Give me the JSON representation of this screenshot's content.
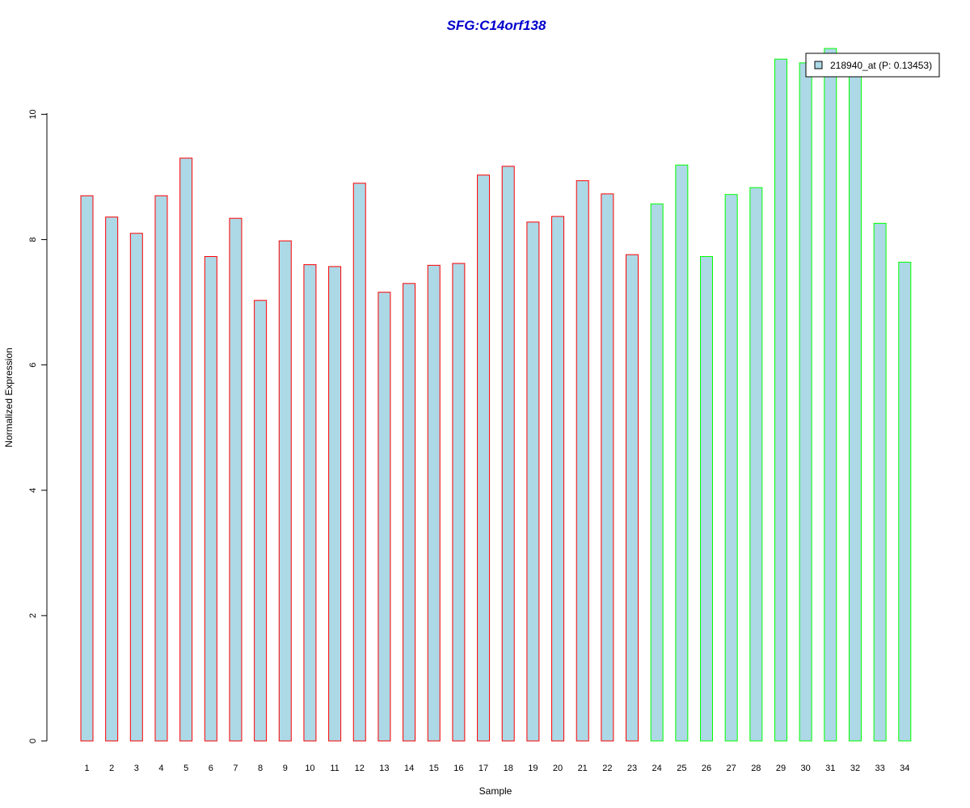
{
  "chart_data": {
    "type": "bar",
    "title": "SFG:C14orf138",
    "xlabel": "Sample",
    "ylabel": "Normalized Expression",
    "categories": [
      "1",
      "2",
      "3",
      "4",
      "5",
      "6",
      "7",
      "8",
      "9",
      "10",
      "11",
      "12",
      "13",
      "14",
      "15",
      "16",
      "17",
      "18",
      "19",
      "20",
      "21",
      "22",
      "23",
      "24",
      "25",
      "26",
      "27",
      "28",
      "29",
      "30",
      "31",
      "32",
      "33",
      "34"
    ],
    "series": [
      {
        "name": "218940_at (P: 0.13453)",
        "values": [
          8.7,
          8.36,
          8.1,
          8.7,
          9.3,
          7.73,
          8.34,
          7.03,
          7.98,
          7.6,
          7.57,
          8.9,
          7.16,
          7.3,
          7.59,
          7.62,
          9.03,
          9.17,
          8.28,
          8.37,
          8.94,
          8.73,
          7.76,
          8.57,
          9.19,
          7.73,
          8.72,
          8.83,
          10.88,
          10.82,
          11.05,
          10.72,
          8.26,
          7.64
        ]
      }
    ],
    "group_border_colors": [
      "#ff0000",
      "#ff0000",
      "#ff0000",
      "#ff0000",
      "#ff0000",
      "#ff0000",
      "#ff0000",
      "#ff0000",
      "#ff0000",
      "#ff0000",
      "#ff0000",
      "#ff0000",
      "#ff0000",
      "#ff0000",
      "#ff0000",
      "#ff0000",
      "#ff0000",
      "#ff0000",
      "#ff0000",
      "#ff0000",
      "#ff0000",
      "#ff0000",
      "#ff0000",
      "#00ff00",
      "#00ff00",
      "#00ff00",
      "#00ff00",
      "#00ff00",
      "#00ff00",
      "#00ff00",
      "#00ff00",
      "#00ff00",
      "#00ff00",
      "#00ff00"
    ],
    "bar_fill": "#add8e6",
    "title_color": "#0000cc",
    "ylim": [
      0,
      11.05
    ],
    "yticks": [
      "0",
      "2",
      "4",
      "6",
      "8",
      "10"
    ],
    "grid": false,
    "legend_position": "top-right"
  }
}
